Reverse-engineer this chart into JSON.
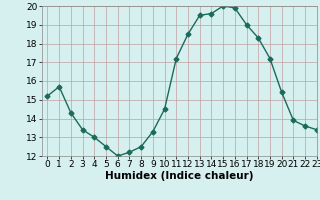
{
  "x": [
    0,
    1,
    2,
    3,
    4,
    5,
    6,
    7,
    8,
    9,
    10,
    11,
    12,
    13,
    14,
    15,
    16,
    17,
    18,
    19,
    20,
    21,
    22,
    23
  ],
  "y": [
    15.2,
    15.7,
    14.3,
    13.4,
    13.0,
    12.5,
    12.0,
    12.2,
    12.5,
    13.3,
    14.5,
    17.2,
    18.5,
    19.5,
    19.6,
    20.0,
    19.9,
    19.0,
    18.3,
    17.2,
    15.4,
    13.9,
    13.6,
    13.4
  ],
  "line_color": "#1a6b5a",
  "marker": "D",
  "marker_size": 2.5,
  "bg_color": "#d6f0f0",
  "grid_color": "#c0a0a0",
  "xlabel": "Humidex (Indice chaleur)",
  "ylim": [
    12,
    20
  ],
  "xlim": [
    -0.5,
    23
  ],
  "yticks": [
    12,
    13,
    14,
    15,
    16,
    17,
    18,
    19,
    20
  ],
  "xticks": [
    0,
    1,
    2,
    3,
    4,
    5,
    6,
    7,
    8,
    9,
    10,
    11,
    12,
    13,
    14,
    15,
    16,
    17,
    18,
    19,
    20,
    21,
    22,
    23
  ],
  "xlabel_fontsize": 7.5,
  "tick_fontsize": 6.5
}
